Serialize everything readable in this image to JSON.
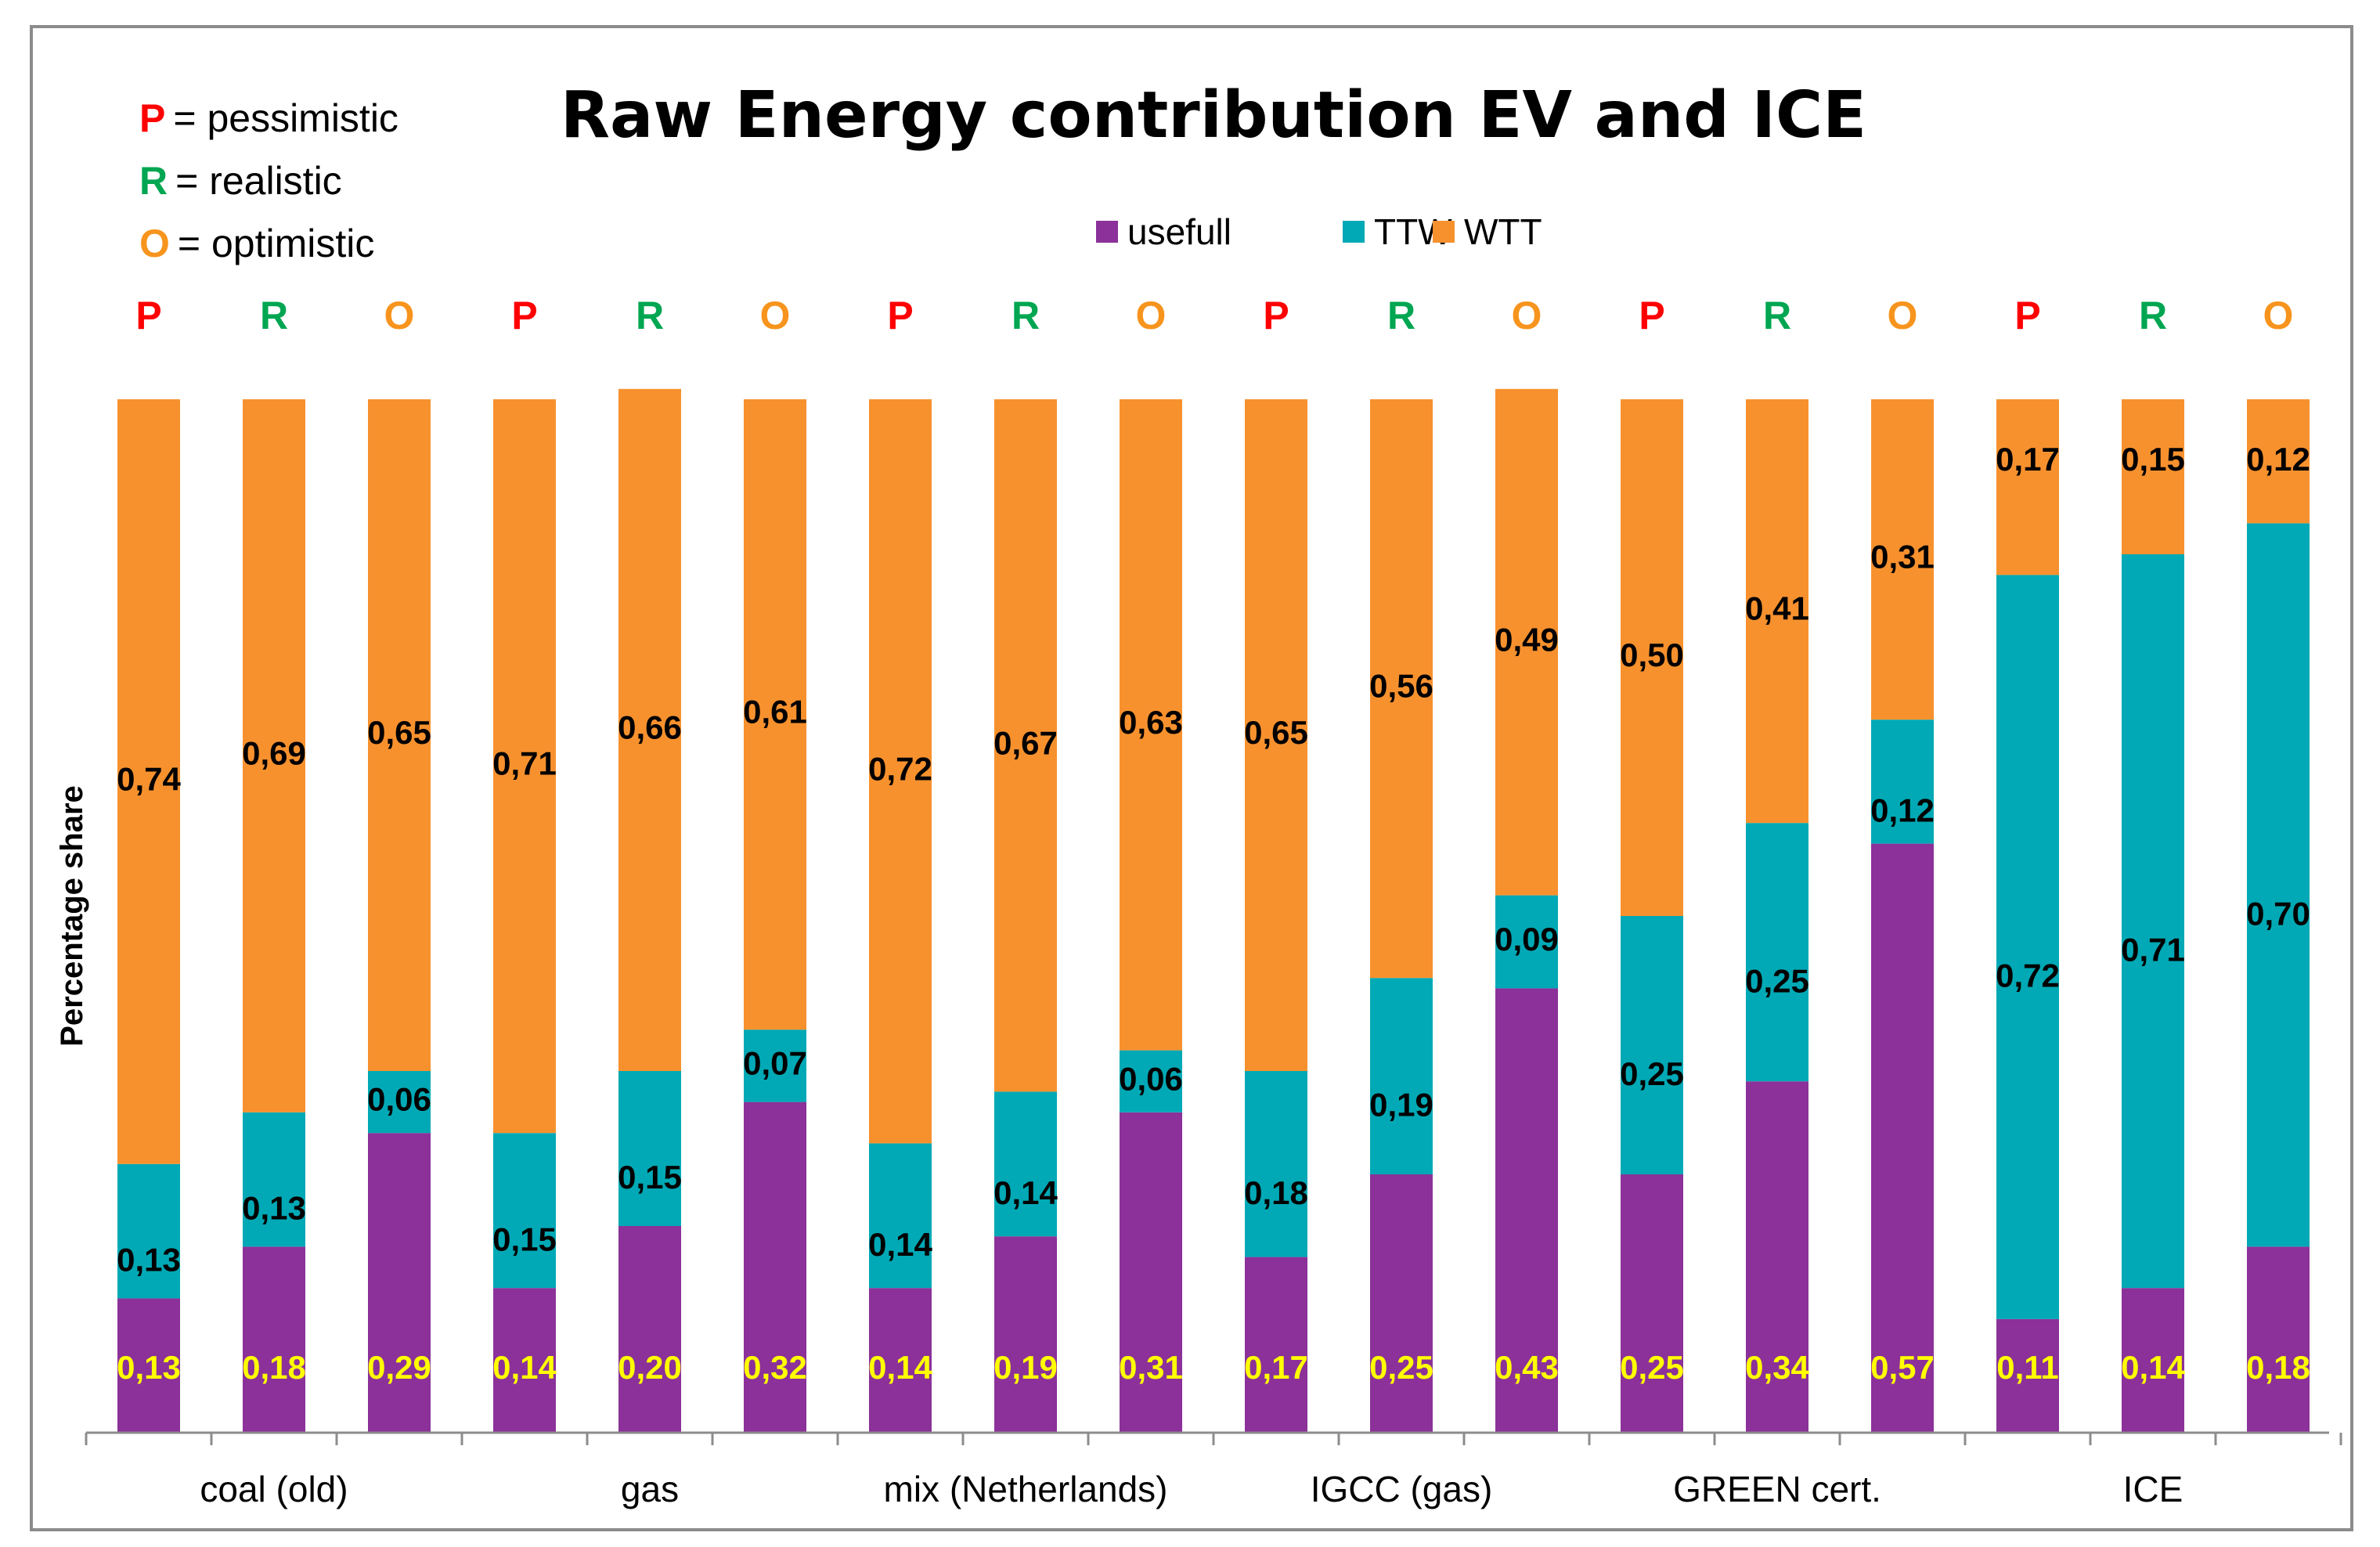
{
  "chart_data": {
    "type": "bar",
    "stacked": true,
    "title": "Raw Energy contribution EV and ICE",
    "ylabel": "Percentage share",
    "xlabel": "",
    "ylim": [
      0,
      1
    ],
    "legend_position": "top-center",
    "scenario_key": [
      {
        "letter": "P",
        "text": "= pessimistic",
        "color": "#ff0000"
      },
      {
        "letter": "R",
        "text": "= realistic",
        "color": "#00a651"
      },
      {
        "letter": "O",
        "text": "= optimistic",
        "color": "#f7941d"
      }
    ],
    "scenario_colors": {
      "P": "#ff0000",
      "R": "#00a651",
      "O": "#f7941d"
    },
    "bars": [
      {
        "scenario": "P",
        "usefull": 0.13,
        "TTW": 0.13,
        "WTT": 0.74,
        "labels": [
          "0,13",
          "0,13",
          "0,74"
        ]
      },
      {
        "scenario": "R",
        "usefull": 0.18,
        "TTW": 0.13,
        "WTT": 0.69,
        "labels": [
          "0,18",
          "0,13",
          "0,69"
        ]
      },
      {
        "scenario": "O",
        "usefull": 0.29,
        "TTW": 0.06,
        "WTT": 0.65,
        "labels": [
          "0,29",
          "0,06",
          "0,65"
        ]
      },
      {
        "scenario": "P",
        "usefull": 0.14,
        "TTW": 0.15,
        "WTT": 0.71,
        "labels": [
          "0,14",
          "0,15",
          "0,71"
        ]
      },
      {
        "scenario": "R",
        "usefull": 0.2,
        "TTW": 0.15,
        "WTT": 0.66,
        "labels": [
          "0,20",
          "0,15",
          "0,66"
        ]
      },
      {
        "scenario": "O",
        "usefull": 0.32,
        "TTW": 0.07,
        "WTT": 0.61,
        "labels": [
          "0,32",
          "0,07",
          "0,61"
        ]
      },
      {
        "scenario": "P",
        "usefull": 0.14,
        "TTW": 0.14,
        "WTT": 0.72,
        "labels": [
          "0,14",
          "0,14",
          "0,72"
        ]
      },
      {
        "scenario": "R",
        "usefull": 0.19,
        "TTW": 0.14,
        "WTT": 0.67,
        "labels": [
          "0,19",
          "0,14",
          "0,67"
        ]
      },
      {
        "scenario": "O",
        "usefull": 0.31,
        "TTW": 0.06,
        "WTT": 0.63,
        "labels": [
          "0,31",
          "0,06",
          "0,63"
        ]
      },
      {
        "scenario": "P",
        "usefull": 0.17,
        "TTW": 0.18,
        "WTT": 0.65,
        "labels": [
          "0,17",
          "0,18",
          "0,65"
        ]
      },
      {
        "scenario": "R",
        "usefull": 0.25,
        "TTW": 0.19,
        "WTT": 0.56,
        "labels": [
          "0,25",
          "0,19",
          "0,56"
        ]
      },
      {
        "scenario": "O",
        "usefull": 0.43,
        "TTW": 0.09,
        "WTT": 0.49,
        "labels": [
          "0,43",
          "0,09",
          "0,49"
        ]
      },
      {
        "scenario": "P",
        "usefull": 0.25,
        "TTW": 0.25,
        "WTT": 0.5,
        "labels": [
          "0,25",
          "0,25",
          "0,50"
        ]
      },
      {
        "scenario": "R",
        "usefull": 0.34,
        "TTW": 0.25,
        "WTT": 0.41,
        "labels": [
          "0,34",
          "0,25",
          "0,41"
        ]
      },
      {
        "scenario": "O",
        "usefull": 0.57,
        "TTW": 0.12,
        "WTT": 0.31,
        "labels": [
          "0,57",
          "0,12",
          "0,31"
        ]
      },
      {
        "scenario": "P",
        "usefull": 0.11,
        "TTW": 0.72,
        "WTT": 0.17,
        "labels": [
          "0,11",
          "0,72",
          "0,17"
        ]
      },
      {
        "scenario": "R",
        "usefull": 0.14,
        "TTW": 0.71,
        "WTT": 0.15,
        "labels": [
          "0,14",
          "0,71",
          "0,15"
        ]
      },
      {
        "scenario": "O",
        "usefull": 0.18,
        "TTW": 0.7,
        "WTT": 0.12,
        "labels": [
          "0,18",
          "0,70",
          "0,12"
        ]
      }
    ],
    "categories": [
      {
        "label": "coal (old)",
        "start": 0,
        "end": 2
      },
      {
        "label": "gas",
        "start": 3,
        "end": 5
      },
      {
        "label": "mix (Netherlands)",
        "start": 6,
        "end": 8
      },
      {
        "label": "IGCC (gas)",
        "start": 9,
        "end": 11
      },
      {
        "label": "GREEN cert.",
        "start": 12,
        "end": 14
      },
      {
        "label": "ICE",
        "start": 15,
        "end": 17
      }
    ],
    "series": [
      {
        "name": "usefull",
        "color": "#8b3199",
        "label_color": "#ffff00"
      },
      {
        "name": "TTW",
        "color": "#00a9b5",
        "label_color": "#000000"
      },
      {
        "name": "WTT",
        "color": "#f7912e",
        "label_color": "#000000"
      }
    ]
  }
}
